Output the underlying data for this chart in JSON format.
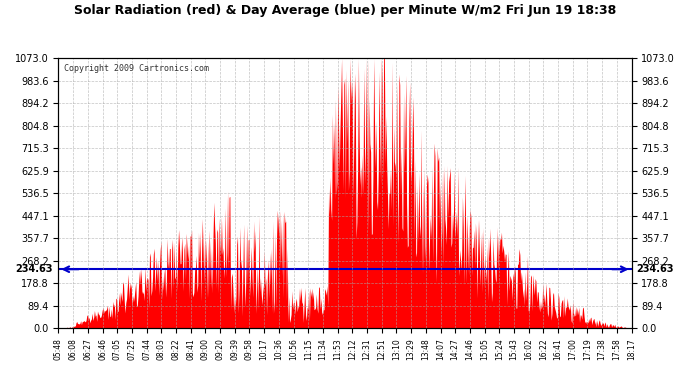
{
  "title": "Solar Radiation (red) & Day Average (blue) per Minute W/m2 Fri Jun 19 18:38",
  "copyright": "Copyright 2009 Cartronics.com",
  "avg_value": 234.63,
  "ymin": 0.0,
  "ymax": 1073.0,
  "yticks": [
    0.0,
    89.4,
    178.8,
    268.2,
    357.7,
    447.1,
    536.5,
    625.9,
    715.3,
    804.8,
    894.2,
    983.6,
    1073.0
  ],
  "xtick_labels": [
    "05:48",
    "06:08",
    "06:27",
    "06:46",
    "07:05",
    "07:25",
    "07:44",
    "08:03",
    "08:22",
    "08:41",
    "09:00",
    "09:20",
    "09:39",
    "09:58",
    "10:17",
    "10:36",
    "10:56",
    "11:15",
    "11:34",
    "11:53",
    "12:12",
    "12:31",
    "12:51",
    "13:10",
    "13:29",
    "13:48",
    "14:07",
    "14:27",
    "14:46",
    "15:05",
    "15:24",
    "15:43",
    "16:02",
    "16:22",
    "16:41",
    "17:00",
    "17:19",
    "17:38",
    "17:58",
    "18:17"
  ],
  "bg_color": "#ffffff",
  "grid_color": "#aaaaaa",
  "fill_color": "#ff0000",
  "line_color": "#0000cc",
  "title_color": "#000000",
  "avg_label_color": "#000000"
}
